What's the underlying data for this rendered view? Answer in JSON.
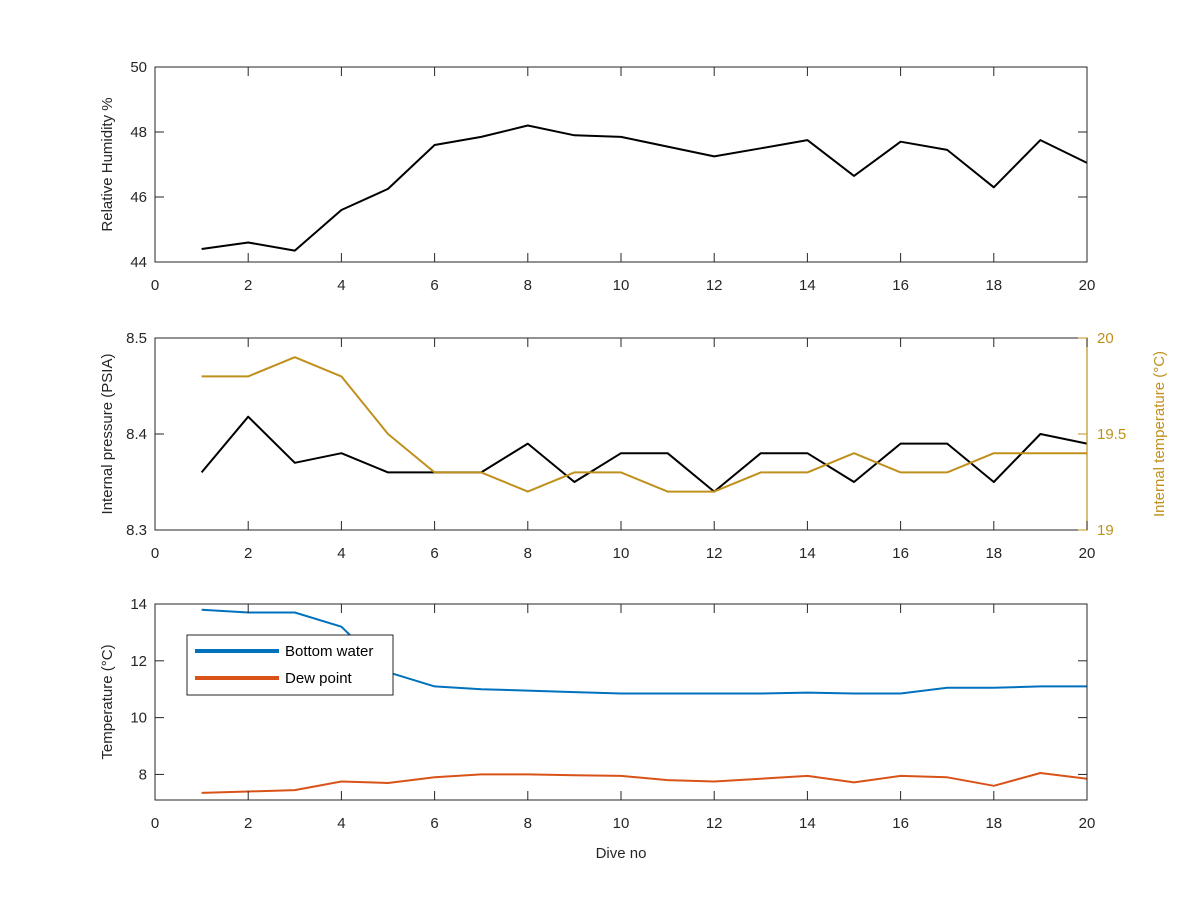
{
  "chart_data": [
    {
      "type": "line",
      "title": "",
      "xlabel": "",
      "ylabel": "Relative Humidity %",
      "xlim": [
        0,
        20
      ],
      "ylim": [
        44,
        50
      ],
      "xticks": [
        0,
        2,
        4,
        6,
        8,
        10,
        12,
        14,
        16,
        18,
        20
      ],
      "yticks": [
        44,
        46,
        48,
        50
      ],
      "grid": false,
      "x": [
        1,
        2,
        3,
        4,
        5,
        6,
        7,
        8,
        9,
        10,
        11,
        12,
        13,
        14,
        15,
        16,
        17,
        18,
        19,
        20
      ],
      "series": [
        {
          "color": "#000000",
          "axis": "left",
          "values": [
            44.4,
            44.6,
            44.35,
            45.6,
            46.25,
            47.6,
            47.85,
            48.2,
            47.9,
            47.85,
            47.55,
            47.25,
            47.5,
            47.75,
            46.65,
            47.7,
            47.45,
            46.3,
            47.75,
            47.05
          ]
        }
      ]
    },
    {
      "type": "line",
      "title": "",
      "xlabel": "",
      "ylabel": "Internal pressure (PSIA)",
      "ylabel_right": "Internal temperature (°C)",
      "xlim": [
        0,
        20
      ],
      "ylim": [
        8.3,
        8.5
      ],
      "ylim_right": [
        19,
        20
      ],
      "xticks": [
        0,
        2,
        4,
        6,
        8,
        10,
        12,
        14,
        16,
        18,
        20
      ],
      "yticks": [
        8.3,
        8.4,
        8.5
      ],
      "yticks_right": [
        19,
        19.5,
        20
      ],
      "grid": false,
      "x": [
        1,
        2,
        3,
        4,
        5,
        6,
        7,
        8,
        9,
        10,
        11,
        12,
        13,
        14,
        15,
        16,
        17,
        18,
        19,
        20
      ],
      "series": [
        {
          "color": "#000000",
          "axis": "left",
          "values": [
            8.36,
            8.418,
            8.37,
            8.38,
            8.36,
            8.36,
            8.36,
            8.39,
            8.35,
            8.38,
            8.38,
            8.34,
            8.38,
            8.38,
            8.35,
            8.39,
            8.39,
            8.35,
            8.4,
            8.39
          ]
        },
        {
          "color": "#C0901C",
          "axis": "right",
          "values": [
            19.8,
            19.8,
            19.9,
            19.8,
            19.5,
            19.3,
            19.3,
            19.2,
            19.3,
            19.3,
            19.2,
            19.2,
            19.3,
            19.3,
            19.4,
            19.3,
            19.3,
            19.4,
            19.4,
            19.4
          ]
        }
      ]
    },
    {
      "type": "line",
      "title": "",
      "xlabel": "Dive no",
      "ylabel": "Temperature (°C)",
      "xlim": [
        0,
        20
      ],
      "ylim": [
        7.1,
        14
      ],
      "xticks": [
        0,
        2,
        4,
        6,
        8,
        10,
        12,
        14,
        16,
        18,
        20
      ],
      "yticks": [
        8,
        10,
        12,
        14
      ],
      "grid": false,
      "legend": "top-left",
      "x": [
        1,
        2,
        3,
        4,
        5,
        6,
        7,
        8,
        9,
        10,
        11,
        12,
        13,
        14,
        15,
        16,
        17,
        18,
        19,
        20
      ],
      "series": [
        {
          "name": "Bottom water",
          "color": "#0072BD",
          "axis": "left",
          "values": [
            13.8,
            13.7,
            13.7,
            13.2,
            11.6,
            11.1,
            11.0,
            10.95,
            10.9,
            10.85,
            10.85,
            10.85,
            10.85,
            10.88,
            10.85,
            10.85,
            11.05,
            11.05,
            11.1,
            11.1
          ]
        },
        {
          "name": "Dew point",
          "color": "#D95319",
          "axis": "left",
          "values": [
            7.35,
            7.4,
            7.45,
            7.75,
            7.7,
            7.9,
            8.0,
            8.0,
            7.97,
            7.95,
            7.8,
            7.75,
            7.85,
            7.95,
            7.72,
            7.95,
            7.9,
            7.6,
            8.05,
            7.85
          ]
        }
      ]
    }
  ]
}
